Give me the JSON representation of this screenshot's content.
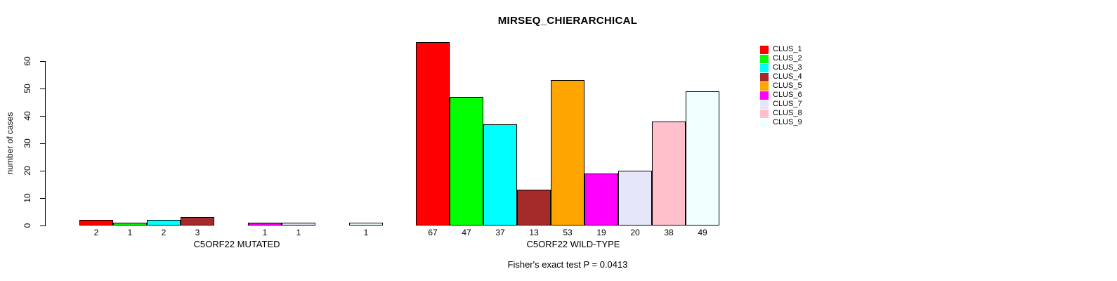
{
  "chart_data": {
    "type": "bar",
    "title": "MIRSEQ_CHIERARCHICAL",
    "ylabel": "number of cases",
    "ylim": [
      0,
      60
    ],
    "yticks": [
      0,
      10,
      20,
      30,
      40,
      50,
      60
    ],
    "grid": false,
    "categories": [
      "CLUS_1",
      "CLUS_2",
      "CLUS_3",
      "CLUS_4",
      "CLUS_5",
      "CLUS_6",
      "CLUS_7",
      "CLUS_8",
      "CLUS_9"
    ],
    "groups": [
      {
        "label": "C5ORF22 MUTATED",
        "values": [
          2,
          1,
          2,
          3,
          0,
          1,
          1,
          0,
          1
        ]
      },
      {
        "label": "C5ORF22 WILD-TYPE",
        "values": [
          67,
          47,
          37,
          13,
          53,
          19,
          20,
          38,
          49
        ]
      }
    ],
    "legend": {
      "position": "right",
      "entries": [
        {
          "label": "CLUS_1",
          "color": "#FF0000"
        },
        {
          "label": "CLUS_2",
          "color": "#00FF00"
        },
        {
          "label": "CLUS_3",
          "color": "#00FFFF"
        },
        {
          "label": "CLUS_4",
          "color": "#A52A2A"
        },
        {
          "label": "CLUS_5",
          "color": "#FFA500"
        },
        {
          "label": "CLUS_6",
          "color": "#FF00FF"
        },
        {
          "label": "CLUS_7",
          "color": "#E6E6FA"
        },
        {
          "label": "CLUS_8",
          "color": "#FFC0CB"
        },
        {
          "label": "CLUS_9",
          "color": "#F0FFFF"
        }
      ]
    },
    "annotation": "Fisher's exact test P = 0.0413",
    "bar_border_color": "#000000",
    "background_color": "#FFFFFF"
  }
}
